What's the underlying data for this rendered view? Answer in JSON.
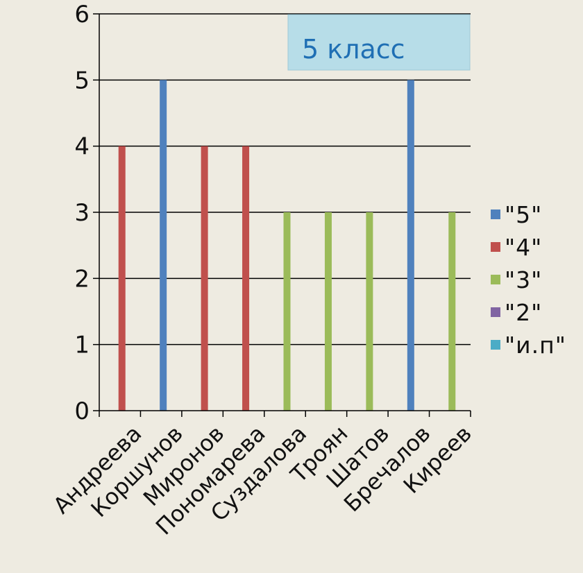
{
  "chart_data": {
    "type": "bar",
    "title": "5 класс",
    "categories": [
      "Андреева",
      "Коршунов",
      "Миронов",
      "Пономарева",
      "Суздалова",
      "Троян",
      "Шатов",
      "Бречалов",
      "Киреев"
    ],
    "series": [
      {
        "name": "\"5\"",
        "color": "#4F81BD",
        "values": [
          0,
          5,
          0,
          0,
          0,
          0,
          0,
          5,
          0
        ]
      },
      {
        "name": "\"4\"",
        "color": "#C0504D",
        "values": [
          4,
          0,
          4,
          4,
          0,
          0,
          0,
          0,
          0
        ]
      },
      {
        "name": "\"3\"",
        "color": "#9BBB59",
        "values": [
          0,
          0,
          0,
          0,
          3,
          3,
          3,
          0,
          3
        ]
      },
      {
        "name": "\"2\"",
        "color": "#8064A2",
        "values": [
          0,
          0,
          0,
          0,
          0,
          0,
          0,
          0,
          0
        ]
      },
      {
        "name": "\"и.п\"",
        "color": "#4BACC6",
        "values": [
          0,
          0,
          0,
          0,
          0,
          0,
          0,
          0,
          0
        ]
      }
    ],
    "ylim": [
      0,
      6
    ],
    "yticks": [
      0,
      1,
      2,
      3,
      4,
      5,
      6
    ],
    "grid": true,
    "legend_position": "right",
    "title_box_color": "#B7DDE8",
    "title_text_color": "#1F6FB4"
  }
}
